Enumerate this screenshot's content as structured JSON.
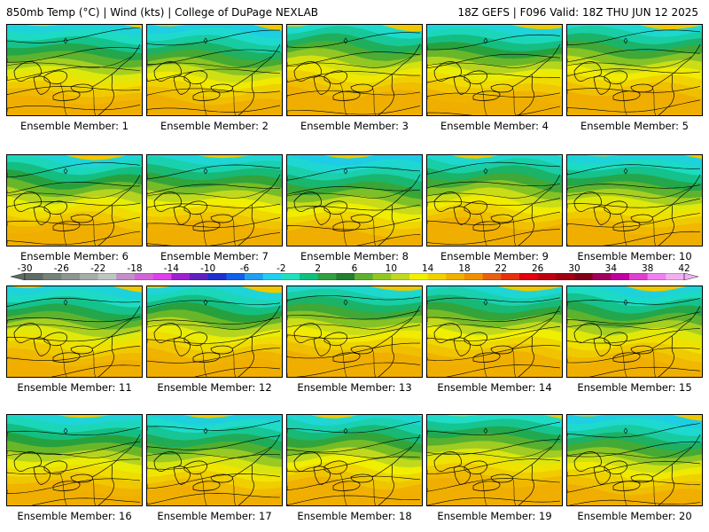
{
  "header": {
    "left": "850mb Temp (°C) | Wind (kts) | College of DuPage NEXLAB",
    "right": "18Z GEFS | F096 Valid: 18Z THU JUN 12 2025"
  },
  "panels": [
    {
      "label": "Ensemble Member: 1",
      "cool": 0.45
    },
    {
      "label": "Ensemble Member: 2",
      "cool": 0.55
    },
    {
      "label": "Ensemble Member: 3",
      "cool": 0.25
    },
    {
      "label": "Ensemble Member: 4",
      "cool": 0.4
    },
    {
      "label": "Ensemble Member: 5",
      "cool": 0.3
    },
    {
      "label": "Ensemble Member: 6",
      "cool": 0.4
    },
    {
      "label": "Ensemble Member: 7",
      "cool": 0.35
    },
    {
      "label": "Ensemble Member: 8",
      "cool": 0.6
    },
    {
      "label": "Ensemble Member: 9",
      "cool": 0.3
    },
    {
      "label": "Ensemble Member: 10",
      "cool": 0.45
    },
    {
      "label": "Ensemble Member: 11",
      "cool": 0.45
    },
    {
      "label": "Ensemble Member: 12",
      "cool": 0.4
    },
    {
      "label": "Ensemble Member: 13",
      "cool": 0.3
    },
    {
      "label": "Ensemble Member: 14",
      "cool": 0.35
    },
    {
      "label": "Ensemble Member: 15",
      "cool": 0.45
    },
    {
      "label": "Ensemble Member: 16",
      "cool": 0.4
    },
    {
      "label": "Ensemble Member: 17",
      "cool": 0.5
    },
    {
      "label": "Ensemble Member: 18",
      "cool": 0.35
    },
    {
      "label": "Ensemble Member: 19",
      "cool": 0.2
    },
    {
      "label": "Ensemble Member: 20",
      "cool": 0.55
    }
  ],
  "colorbar": {
    "labels": [
      "-30",
      "-26",
      "-22",
      "-18",
      "-14",
      "-10",
      "-6",
      "-2",
      "2",
      "6",
      "10",
      "14",
      "18",
      "22",
      "26",
      "30",
      "34",
      "38",
      "42"
    ],
    "colors": [
      "#5f6b65",
      "#75827a",
      "#8c9791",
      "#a4aea9",
      "#bcc6c2",
      "#c48ec8",
      "#d264d8",
      "#e040e8",
      "#a020d0",
      "#6020c0",
      "#2030d0",
      "#1060e8",
      "#20a0f0",
      "#20d0f0",
      "#20e0c0",
      "#10c080",
      "#30a040",
      "#208030",
      "#60b030",
      "#90c820",
      "#c0d820",
      "#f0f000",
      "#f0d000",
      "#f0b000",
      "#f09000",
      "#e86010",
      "#e83010",
      "#e00010",
      "#c00010",
      "#a00010",
      "#800018",
      "#a00060",
      "#c000a0",
      "#e040d0",
      "#f080f0",
      "#f0b0f0"
    ]
  }
}
